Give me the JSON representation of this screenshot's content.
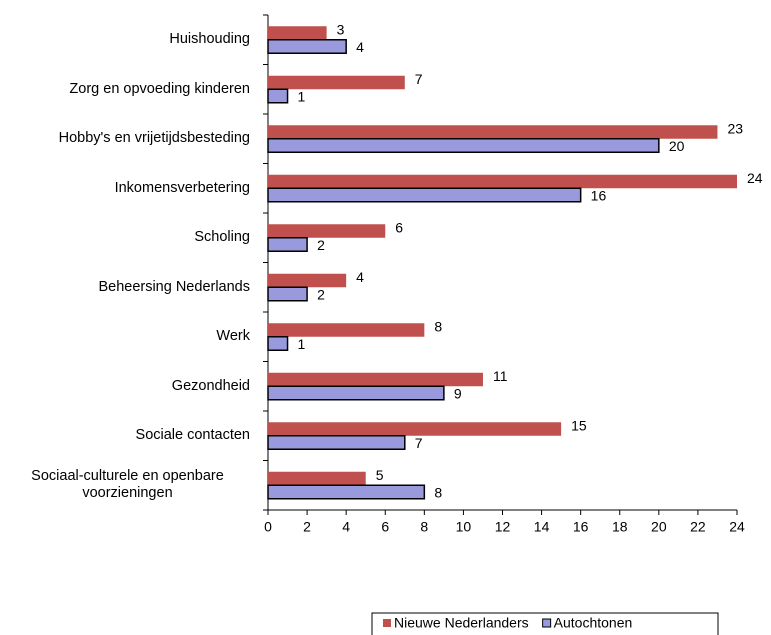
{
  "chart_data": {
    "type": "bar",
    "orientation": "horizontal",
    "categories": [
      "Huishouding",
      "Zorg en opvoeding kinderen",
      "Hobby's en vrijetijdsbesteding",
      "Inkomensverbetering",
      "Scholing",
      "Beheersing Nederlands",
      "Werk",
      "Gezondheid",
      "Sociale contacten",
      "Sociaal-culturele en openbare voorzieningen"
    ],
    "series": [
      {
        "name": "Nieuwe Nederlanders",
        "color": "#c0504d",
        "values": [
          3,
          7,
          23,
          24,
          6,
          4,
          8,
          11,
          15,
          5
        ]
      },
      {
        "name": "Autochtonen",
        "color": "#9999dd",
        "values": [
          4,
          1,
          20,
          16,
          2,
          2,
          1,
          9,
          7,
          8
        ]
      }
    ],
    "xlim": [
      0,
      24
    ],
    "xticks": [
      0,
      2,
      4,
      6,
      8,
      10,
      12,
      14,
      16,
      18,
      20,
      22,
      24
    ],
    "grid": false,
    "legend": "bottom"
  }
}
